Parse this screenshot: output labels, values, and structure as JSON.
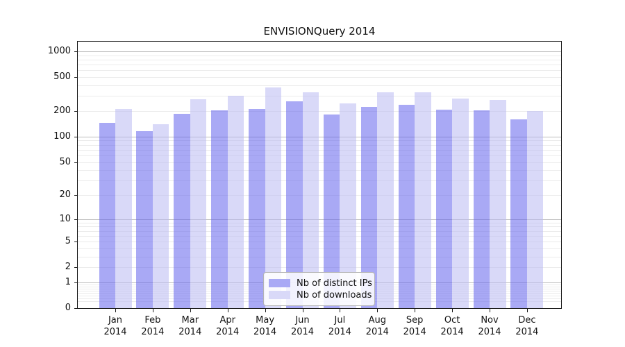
{
  "title": "ENVISIONQuery 2014",
  "legend": {
    "items": [
      {
        "label": "Nb of distinct IPs",
        "color": "#a9a9f5"
      },
      {
        "label": "Nb of downloads",
        "color": "#d9d9f8"
      }
    ]
  },
  "chart_data": {
    "type": "bar",
    "title": "ENVISIONQuery 2014",
    "categories": [
      "Jan 2014",
      "Feb 2014",
      "Mar 2014",
      "Apr 2014",
      "May 2014",
      "Jun 2014",
      "Jul 2014",
      "Aug 2014",
      "Sep 2014",
      "Oct 2014",
      "Nov 2014",
      "Dec 2014"
    ],
    "series": [
      {
        "name": "Nb of distinct IPs",
        "color": "#a9a9f5",
        "values": [
          145,
          116,
          187,
          205,
          210,
          259,
          182,
          223,
          237,
          207,
          205,
          161
        ]
      },
      {
        "name": "Nb of downloads",
        "color": "#d9d9f8",
        "values": [
          211,
          140,
          277,
          305,
          380,
          335,
          247,
          332,
          330,
          279,
          272,
          199
        ]
      }
    ],
    "xlabel": "",
    "ylabel": "",
    "y_scale": "symlog (position proportional to log1p of value)",
    "y_ticks": [
      0,
      1,
      2,
      5,
      10,
      20,
      50,
      100,
      200,
      500,
      1000
    ],
    "ylim": [
      0,
      1300
    ],
    "grid": {
      "major_lines_at": [
        1,
        10,
        100,
        1000
      ],
      "minor_lines_at": [
        0.2,
        0.3,
        0.4,
        0.5,
        0.6,
        0.7,
        0.8,
        0.9,
        2,
        3,
        4,
        5,
        6,
        7,
        8,
        9,
        20,
        30,
        40,
        50,
        60,
        70,
        80,
        90,
        200,
        300,
        400,
        500,
        600,
        700,
        800,
        900
      ]
    },
    "legend_position": "lower center, inside axes"
  },
  "colors": {
    "major_grid": "#bbbbbb",
    "minor_grid": "#ebebeb",
    "axis_and_text": "#1a1a1a",
    "legend_border": "#b3b3b3",
    "background": "#ffffff"
  }
}
